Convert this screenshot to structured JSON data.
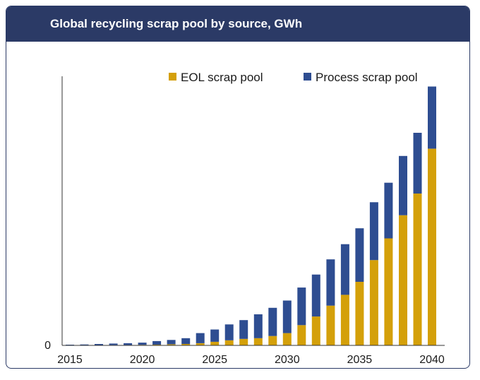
{
  "header": {
    "title": "Global recycling scrap pool by source, GWh"
  },
  "chart_data": {
    "type": "bar",
    "stacked": true,
    "title": "Global recycling scrap pool by source, GWh",
    "xlabel": "",
    "ylabel": "",
    "categories": [
      2015,
      2016,
      2017,
      2018,
      2019,
      2020,
      2021,
      2022,
      2023,
      2024,
      2025,
      2026,
      2027,
      2028,
      2029,
      2030,
      2031,
      2032,
      2033,
      2034,
      2035,
      2036,
      2037,
      2038,
      2039,
      2040
    ],
    "x_tick_labels": [
      "2015",
      "2020",
      "2025",
      "2030",
      "2035",
      "2040"
    ],
    "y_tick_labels": [
      "0"
    ],
    "ylim": [
      0,
      380
    ],
    "series": [
      {
        "name": "EOL scrap pool",
        "color": "#d4a00a",
        "values": [
          0.2,
          0.3,
          0.4,
          0.5,
          0.6,
          0.8,
          1,
          1.5,
          2,
          3,
          5,
          7,
          9,
          10,
          13,
          17,
          28,
          40,
          55,
          70,
          88,
          118,
          148,
          180,
          210,
          272
        ]
      },
      {
        "name": "Process scrap pool",
        "color": "#2e4d91",
        "values": [
          0.8,
          1,
          1.6,
          2,
          2.4,
          3,
          5,
          6,
          8,
          14,
          17,
          22,
          26,
          33,
          39,
          45,
          52,
          58,
          64,
          70,
          74,
          80,
          77,
          82,
          84,
          86
        ]
      }
    ],
    "legend": {
      "position": "top-right",
      "entries": [
        "EOL scrap pool",
        "Process scrap pool"
      ]
    }
  }
}
